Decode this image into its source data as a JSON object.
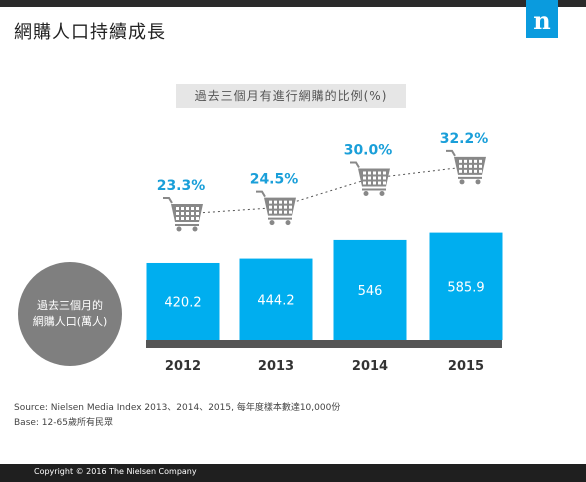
{
  "header": {
    "title": "網購人口持續成長",
    "logo_letter": "n"
  },
  "subtitle": "過去三個月有進行網購的比例(%)",
  "circle_label": {
    "line1": "過去三個月的",
    "line2": "網購人口(萬人)"
  },
  "chart_data": {
    "type": "bar",
    "categories": [
      "2012",
      "2013",
      "2014",
      "2015"
    ],
    "series": [
      {
        "values": [
          420.2,
          444.2,
          546,
          585.9
        ],
        "value_labels": [
          "420.2",
          "444.2",
          "546",
          "585.9"
        ]
      },
      {
        "values": [
          23.3,
          24.5,
          30.0,
          32.2
        ],
        "value_labels": [
          "23.3%",
          "24.5%",
          "30.0%",
          "32.2%"
        ],
        "marker": "cart-icon"
      }
    ],
    "bar_color": "#00aeef",
    "percent_color": "#1a9fd9"
  },
  "source": {
    "line1": "Source: Nielsen Media Index 2013、2014、2015, 每年度樣本數達10,000份",
    "line2": "Base: 12-65歲所有民眾"
  },
  "footer": {
    "copyright": "Copyright © 2016 The Nielsen Company"
  }
}
